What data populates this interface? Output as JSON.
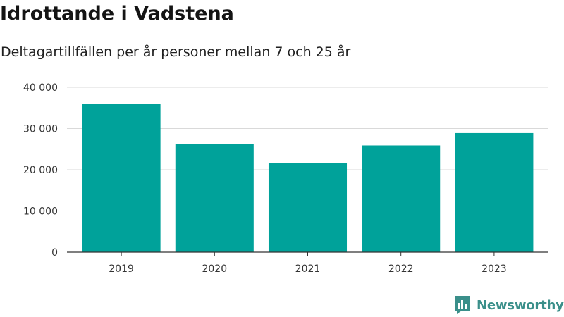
{
  "header": {
    "title": "Idrottande i Vadstena",
    "subtitle": "Deltagartillfällen per år personer mellan 7 och 25 år"
  },
  "brand": {
    "name": "Newsworthy",
    "icon": "newsworthy-logo-icon",
    "color": "#3a8f8a"
  },
  "chart_data": {
    "type": "bar",
    "categories": [
      "2019",
      "2020",
      "2021",
      "2022",
      "2023"
    ],
    "values": [
      36000,
      26200,
      21600,
      25900,
      28900
    ],
    "ylim": [
      0,
      40000
    ],
    "yticks": [
      0,
      10000,
      20000,
      30000,
      40000
    ],
    "ytick_labels": [
      "0",
      "10 000",
      "20 000",
      "30 000",
      "40 000"
    ],
    "bar_color": "#00a29a",
    "grid": true
  }
}
